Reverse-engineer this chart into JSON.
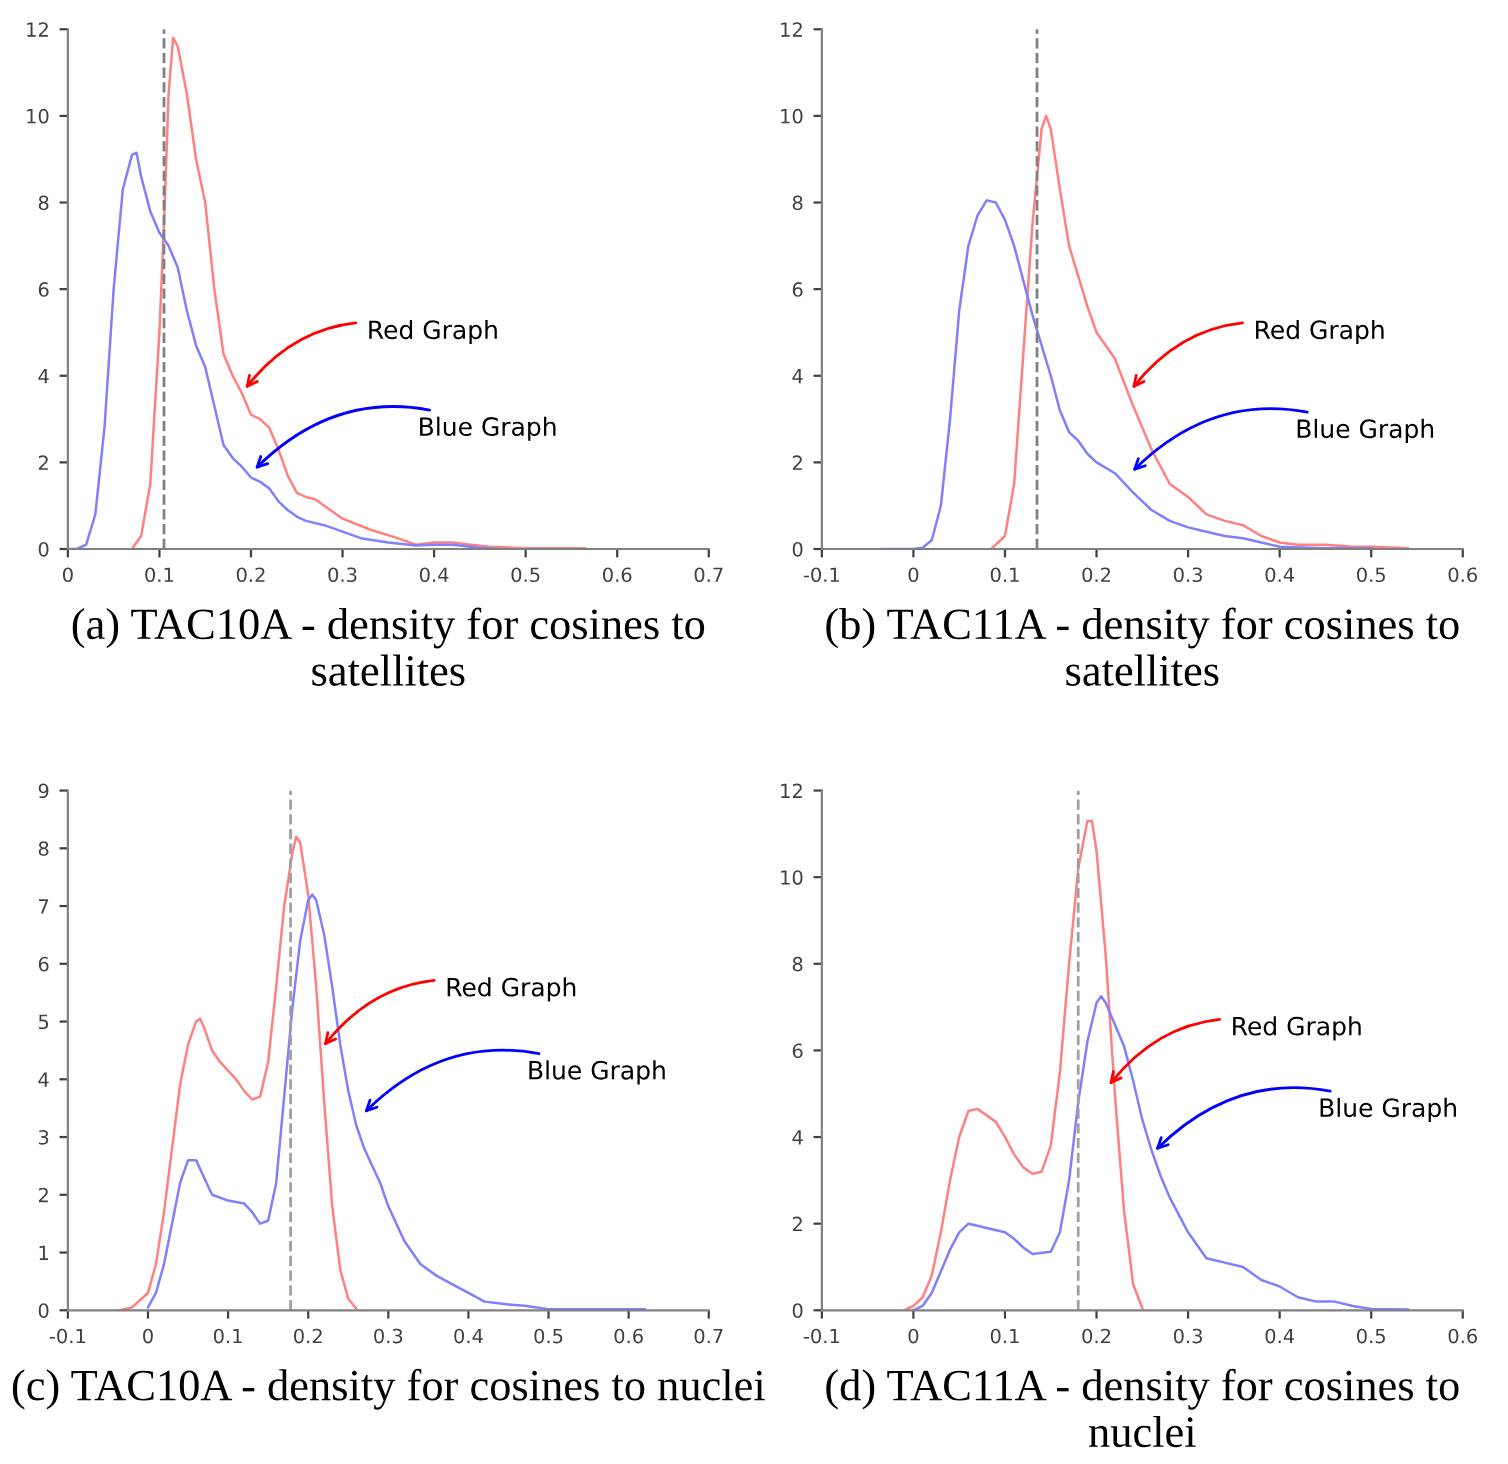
{
  "chart_data": [
    {
      "type": "line",
      "annotations": [
        {
          "text": "Red Graph",
          "x": 0.19,
          "y": 3.6
        },
        {
          "text": "Blue Graph",
          "x": 0.2,
          "y": 1.75
        },
        "(a) TAC10A - density for cosines to satellites"
      ],
      "xlim": [
        0,
        0.7
      ],
      "xticks": [
        0,
        0.1,
        0.2,
        0.3,
        0.4,
        0.5,
        0.6,
        0.7
      ],
      "ylim": [
        0,
        12
      ],
      "yticks": [
        0,
        2,
        4,
        6,
        8,
        10,
        12
      ],
      "ref_lines": [
        {
          "axis": "x",
          "value": 0.105,
          "color": "#808080",
          "line_style": "dashed"
        }
      ],
      "series": [
        {
          "color": "#ff8080",
          "x": [
            0.07,
            0.08,
            0.09,
            0.1,
            0.105,
            0.11,
            0.115,
            0.12,
            0.13,
            0.14,
            0.15,
            0.16,
            0.17,
            0.18,
            0.19,
            0.2,
            0.21,
            0.22,
            0.23,
            0.24,
            0.25,
            0.26,
            0.27,
            0.28,
            0.3,
            0.33,
            0.36,
            0.38,
            0.4,
            0.42,
            0.44,
            0.46,
            0.5,
            0.565
          ],
          "values": [
            0,
            0.3,
            1.5,
            5.0,
            7.5,
            10.5,
            11.8,
            11.6,
            10.5,
            9.0,
            8.0,
            6.0,
            4.5,
            4.0,
            3.6,
            3.1,
            3.0,
            2.8,
            2.3,
            1.7,
            1.3,
            1.2,
            1.15,
            1.0,
            0.7,
            0.45,
            0.25,
            0.1,
            0.15,
            0.15,
            0.1,
            0.05,
            0.02,
            0.02
          ]
        },
        {
          "color": "#8080ff",
          "x": [
            0,
            0.01,
            0.02,
            0.03,
            0.04,
            0.05,
            0.06,
            0.07,
            0.075,
            0.08,
            0.09,
            0.1,
            0.11,
            0.12,
            0.13,
            0.14,
            0.15,
            0.16,
            0.17,
            0.18,
            0.19,
            0.2,
            0.21,
            0.22,
            0.23,
            0.24,
            0.25,
            0.26,
            0.28,
            0.3,
            0.32,
            0.35,
            0.38,
            0.4,
            0.42,
            0.45,
            0.47
          ],
          "values": [
            0,
            0,
            0.1,
            0.8,
            2.8,
            6.0,
            8.3,
            9.1,
            9.15,
            8.6,
            7.8,
            7.3,
            7.0,
            6.5,
            5.5,
            4.7,
            4.2,
            3.3,
            2.4,
            2.1,
            1.9,
            1.65,
            1.55,
            1.4,
            1.1,
            0.9,
            0.75,
            0.65,
            0.55,
            0.4,
            0.25,
            0.15,
            0.08,
            0.1,
            0.1,
            0.03,
            0
          ]
        }
      ]
    },
    {
      "type": "line",
      "annotations": [
        {
          "text": "Red Graph",
          "x": 0.235,
          "y": 3.6
        },
        {
          "text": "Blue Graph",
          "x": 0.235,
          "y": 1.7
        },
        "(b) TAC11A - density for cosines to satellites"
      ],
      "xlim": [
        -0.1,
        0.6
      ],
      "xticks": [
        -0.1,
        0,
        0.1,
        0.2,
        0.3,
        0.4,
        0.5,
        0.6
      ],
      "ylim": [
        0,
        12
      ],
      "yticks": [
        0,
        2,
        4,
        6,
        8,
        10,
        12
      ],
      "ref_lines": [
        {
          "axis": "x",
          "value": 0.135,
          "color": "#808080",
          "line_style": "dashed"
        }
      ],
      "series": [
        {
          "color": "#ff8080",
          "x": [
            0.085,
            0.1,
            0.11,
            0.12,
            0.13,
            0.14,
            0.145,
            0.15,
            0.16,
            0.17,
            0.18,
            0.19,
            0.2,
            0.22,
            0.24,
            0.26,
            0.28,
            0.3,
            0.32,
            0.34,
            0.36,
            0.38,
            0.4,
            0.42,
            0.45,
            0.48,
            0.5,
            0.54
          ],
          "values": [
            0,
            0.3,
            1.5,
            4.5,
            7.5,
            9.7,
            10.0,
            9.7,
            8.3,
            7.0,
            6.3,
            5.6,
            5.0,
            4.4,
            3.3,
            2.3,
            1.5,
            1.2,
            0.8,
            0.65,
            0.55,
            0.3,
            0.15,
            0.1,
            0.1,
            0.05,
            0.05,
            0.02
          ]
        },
        {
          "color": "#8080ff",
          "x": [
            -0.035,
            0,
            0.01,
            0.02,
            0.03,
            0.04,
            0.05,
            0.06,
            0.07,
            0.08,
            0.09,
            0.1,
            0.11,
            0.12,
            0.13,
            0.14,
            0.15,
            0.16,
            0.17,
            0.18,
            0.19,
            0.2,
            0.22,
            0.24,
            0.26,
            0.28,
            0.3,
            0.32,
            0.34,
            0.36,
            0.38,
            0.4,
            0.45,
            0.5
          ],
          "values": [
            0,
            0,
            0.03,
            0.2,
            1.0,
            3.0,
            5.5,
            7.0,
            7.7,
            8.05,
            8.0,
            7.6,
            7.0,
            6.2,
            5.4,
            4.7,
            4.0,
            3.2,
            2.7,
            2.5,
            2.2,
            2.0,
            1.75,
            1.3,
            0.9,
            0.65,
            0.5,
            0.4,
            0.3,
            0.25,
            0.15,
            0.05,
            0.02,
            0.02
          ]
        }
      ]
    },
    {
      "type": "line",
      "annotations": [
        {
          "text": "Red Graph",
          "x": 0.215,
          "y": 4.5
        },
        {
          "text": "Blue Graph",
          "x": 0.265,
          "y": 3.35
        },
        "(c) TAC10A - density for cosines to nuclei"
      ],
      "xlim": [
        -0.1,
        0.7
      ],
      "xticks": [
        -0.1,
        0,
        0.1,
        0.2,
        0.3,
        0.4,
        0.5,
        0.6,
        0.7
      ],
      "ylim": [
        0,
        9
      ],
      "yticks": [
        0,
        1,
        2,
        3,
        4,
        5,
        6,
        7,
        8,
        9
      ],
      "ref_lines": [
        {
          "axis": "x",
          "value": 0.178,
          "color": "#a0a0a0",
          "line_style": "dashed"
        }
      ],
      "series": [
        {
          "color": "#ff8080",
          "x": [
            -0.035,
            -0.02,
            0,
            0.01,
            0.02,
            0.03,
            0.04,
            0.05,
            0.06,
            0.065,
            0.07,
            0.08,
            0.09,
            0.1,
            0.11,
            0.12,
            0.13,
            0.14,
            0.15,
            0.16,
            0.17,
            0.18,
            0.185,
            0.19,
            0.2,
            0.21,
            0.22,
            0.23,
            0.24,
            0.25,
            0.26
          ],
          "values": [
            0,
            0.05,
            0.3,
            0.8,
            1.7,
            2.8,
            3.9,
            4.6,
            5.0,
            5.05,
            4.9,
            4.5,
            4.3,
            4.15,
            4.0,
            3.8,
            3.65,
            3.7,
            4.3,
            5.6,
            7.0,
            7.9,
            8.2,
            8.1,
            7.2,
            5.6,
            3.6,
            1.8,
            0.7,
            0.2,
            0.03
          ]
        },
        {
          "color": "#8080ff",
          "x": [
            0,
            0.01,
            0.02,
            0.03,
            0.04,
            0.05,
            0.06,
            0.07,
            0.08,
            0.1,
            0.12,
            0.13,
            0.14,
            0.15,
            0.16,
            0.17,
            0.18,
            0.19,
            0.2,
            0.205,
            0.21,
            0.22,
            0.23,
            0.24,
            0.25,
            0.26,
            0.27,
            0.28,
            0.29,
            0.3,
            0.32,
            0.34,
            0.36,
            0.38,
            0.4,
            0.42,
            0.45,
            0.47,
            0.5,
            0.62
          ],
          "values": [
            0.05,
            0.3,
            0.8,
            1.5,
            2.2,
            2.6,
            2.6,
            2.3,
            2.0,
            1.9,
            1.85,
            1.7,
            1.5,
            1.55,
            2.2,
            3.7,
            5.2,
            6.4,
            7.1,
            7.2,
            7.1,
            6.5,
            5.6,
            4.6,
            3.8,
            3.2,
            2.8,
            2.5,
            2.2,
            1.8,
            1.2,
            0.8,
            0.6,
            0.45,
            0.3,
            0.15,
            0.1,
            0.08,
            0.02,
            0.02
          ]
        }
      ]
    },
    {
      "type": "line",
      "annotations": [
        {
          "text": "Red Graph",
          "x": 0.21,
          "y": 5.1
        },
        {
          "text": "Blue Graph",
          "x": 0.26,
          "y": 3.6
        },
        "(d) TAC11A - density for cosines to nuclei"
      ],
      "xlim": [
        -0.1,
        0.6
      ],
      "xticks": [
        -0.1,
        0,
        0.1,
        0.2,
        0.3,
        0.4,
        0.5,
        0.6
      ],
      "ylim": [
        0,
        12
      ],
      "yticks": [
        0,
        2,
        4,
        6,
        8,
        10,
        12
      ],
      "ref_lines": [
        {
          "axis": "x",
          "value": 0.18,
          "color": "#a0a0a0",
          "line_style": "dashed"
        }
      ],
      "series": [
        {
          "color": "#ff8080",
          "x": [
            -0.01,
            0,
            0.01,
            0.02,
            0.03,
            0.04,
            0.05,
            0.06,
            0.07,
            0.08,
            0.09,
            0.1,
            0.11,
            0.12,
            0.13,
            0.14,
            0.15,
            0.16,
            0.17,
            0.18,
            0.19,
            0.195,
            0.2,
            0.21,
            0.22,
            0.23,
            0.24,
            0.25
          ],
          "values": [
            0,
            0.1,
            0.3,
            0.8,
            1.8,
            3.0,
            4.0,
            4.6,
            4.65,
            4.5,
            4.35,
            4.0,
            3.6,
            3.3,
            3.15,
            3.2,
            3.8,
            5.5,
            8.0,
            10.2,
            11.3,
            11.3,
            10.6,
            8.2,
            5.0,
            2.3,
            0.6,
            0.05
          ]
        },
        {
          "color": "#8080ff",
          "x": [
            0,
            0.01,
            0.02,
            0.03,
            0.04,
            0.05,
            0.06,
            0.07,
            0.08,
            0.1,
            0.11,
            0.12,
            0.13,
            0.15,
            0.16,
            0.17,
            0.18,
            0.19,
            0.2,
            0.205,
            0.21,
            0.22,
            0.23,
            0.24,
            0.25,
            0.26,
            0.27,
            0.28,
            0.3,
            0.32,
            0.34,
            0.36,
            0.38,
            0.4,
            0.42,
            0.44,
            0.46,
            0.48,
            0.5,
            0.54
          ],
          "values": [
            0,
            0.1,
            0.4,
            0.9,
            1.4,
            1.8,
            2.0,
            1.95,
            1.9,
            1.8,
            1.65,
            1.45,
            1.3,
            1.35,
            1.8,
            3.0,
            4.8,
            6.2,
            7.1,
            7.25,
            7.1,
            6.6,
            6.1,
            5.3,
            4.4,
            3.7,
            3.1,
            2.6,
            1.8,
            1.2,
            1.1,
            1.0,
            0.7,
            0.55,
            0.3,
            0.2,
            0.2,
            0.1,
            0.03,
            0.02
          ]
        }
      ]
    }
  ]
}
